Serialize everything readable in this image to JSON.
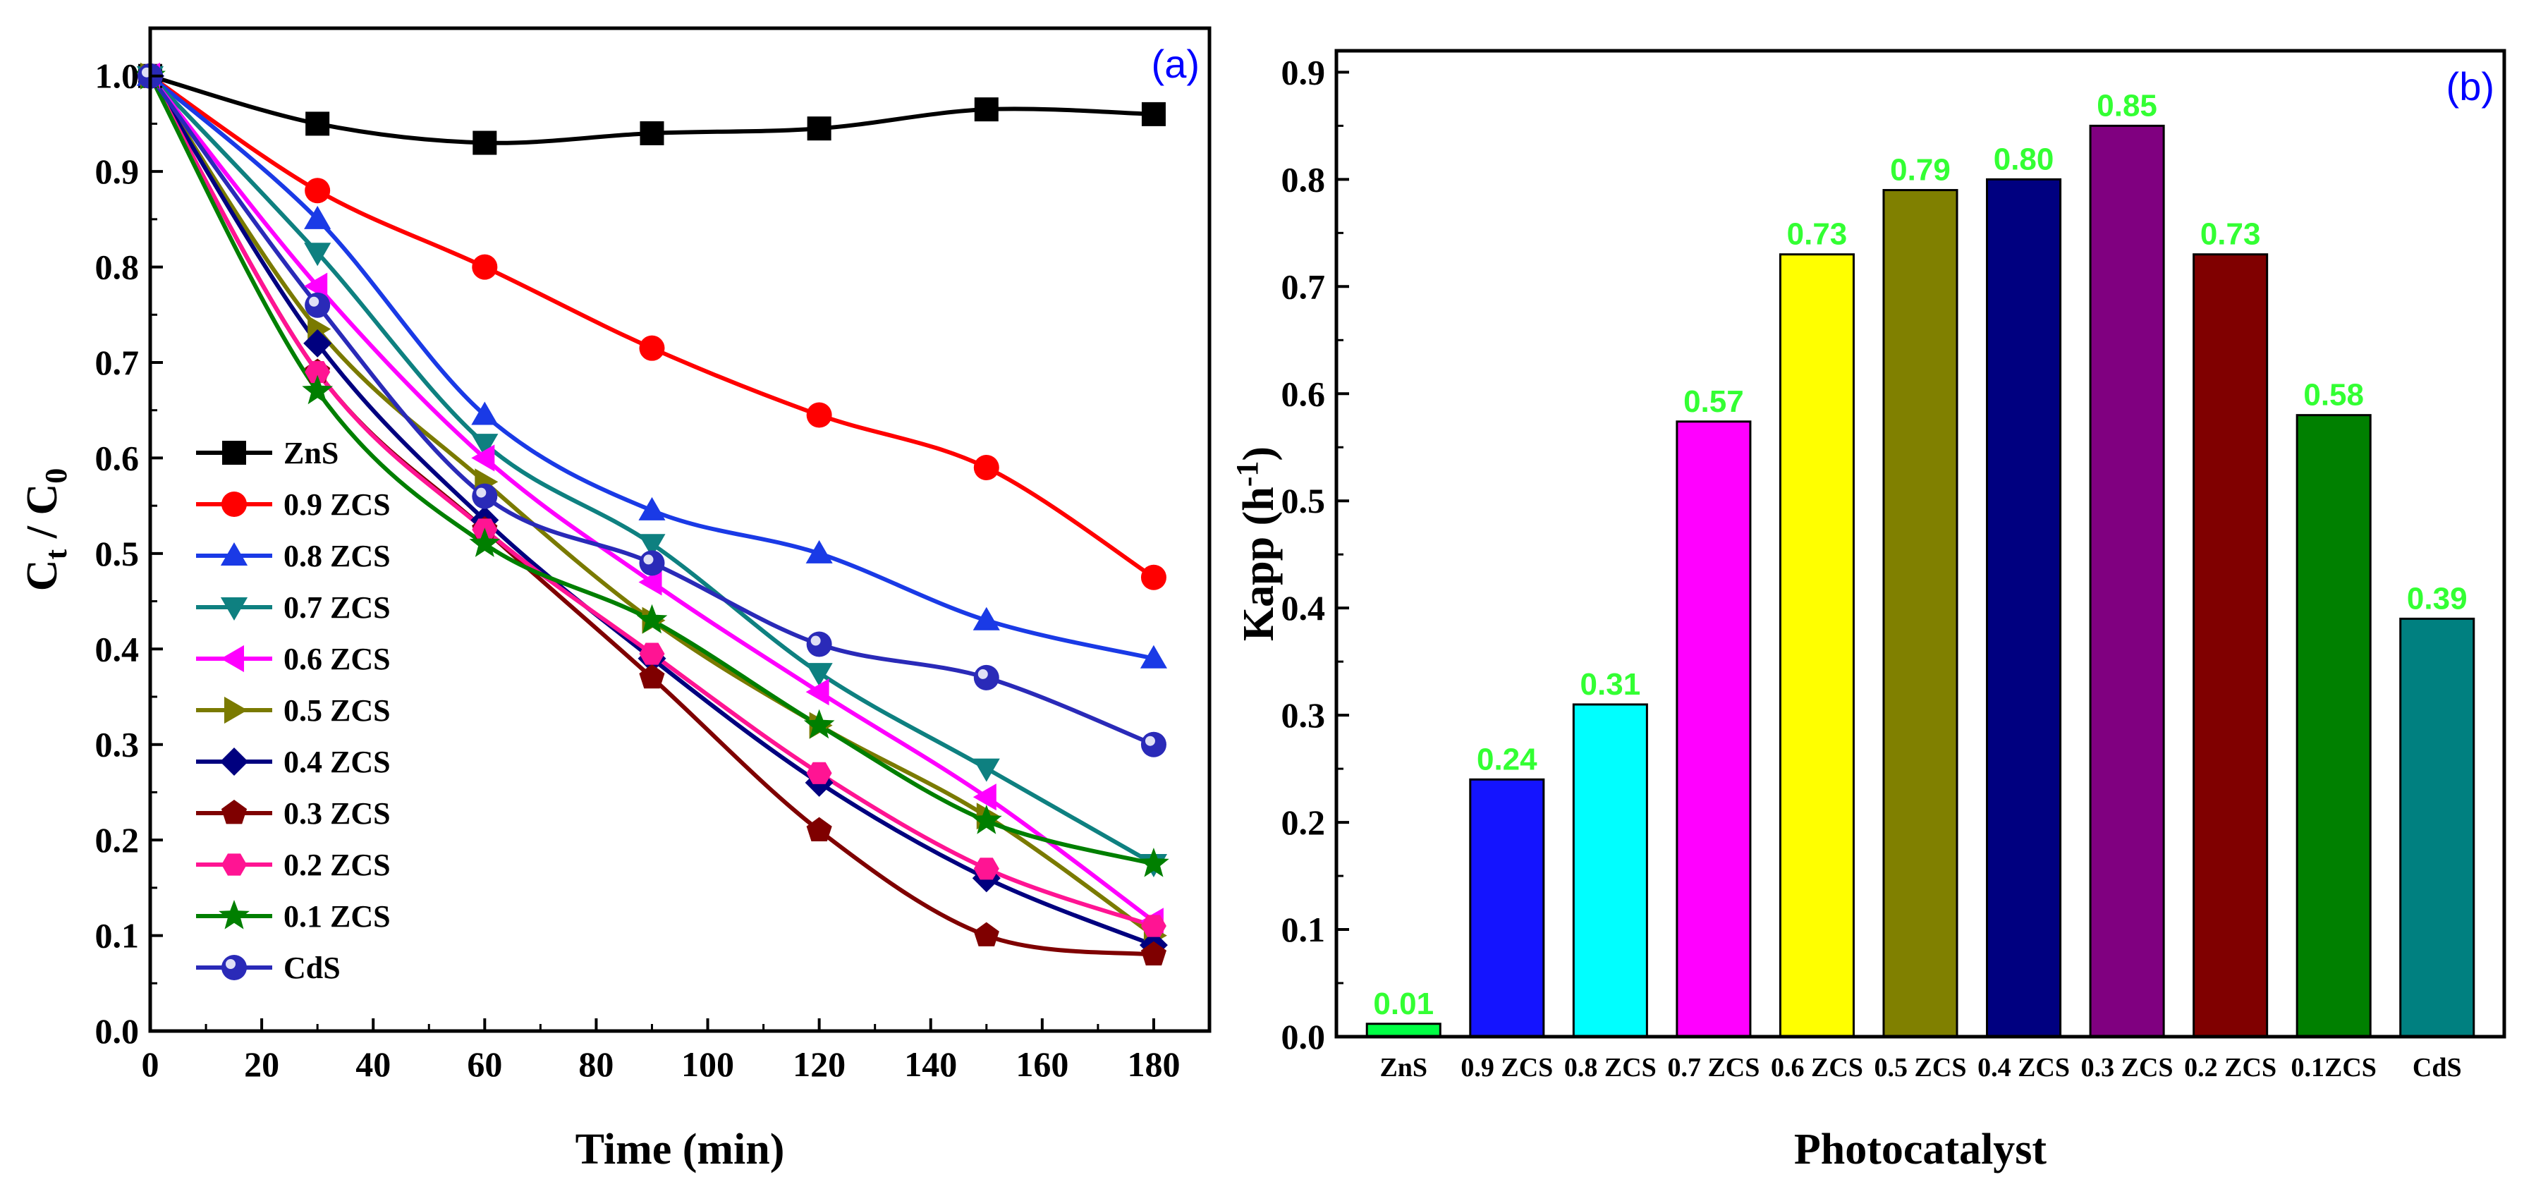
{
  "chart_data": [
    {
      "type": "line",
      "panel_label": "(a)",
      "xlabel": "Time (min)",
      "ylabel": {
        "main": "C",
        "sub1": "t",
        "sep": " / C",
        "sub2": "0"
      },
      "xlim": [
        0,
        190
      ],
      "ylim": [
        0,
        1.05
      ],
      "x": [
        0,
        30,
        60,
        90,
        120,
        150,
        180
      ],
      "x_ticks": [
        0,
        20,
        40,
        60,
        80,
        100,
        120,
        140,
        160,
        180
      ],
      "x_tick_labels": [
        "0",
        "20",
        "40",
        "60",
        "80",
        "100",
        "120",
        "140",
        "160",
        "180"
      ],
      "y_ticks": [
        0,
        0.1,
        0.2,
        0.3,
        0.4,
        0.5,
        0.6,
        0.7,
        0.8,
        0.9,
        1.0
      ],
      "y_tick_labels": [
        "0.0",
        "0.1",
        "0.2",
        "0.3",
        "0.4",
        "0.5",
        "0.6",
        "0.7",
        "0.8",
        "0.9",
        "1.0"
      ],
      "legend_position": "center-left",
      "series": [
        {
          "name": "ZnS",
          "color": "#000000",
          "marker": "square",
          "values": [
            1.0,
            0.95,
            0.93,
            0.94,
            0.945,
            0.965,
            0.96
          ]
        },
        {
          "name": "0.9 ZCS",
          "color": "#ff0000",
          "marker": "circle",
          "values": [
            1.0,
            0.88,
            0.8,
            0.715,
            0.645,
            0.59,
            0.475
          ]
        },
        {
          "name": "0.8 ZCS",
          "color": "#1a3ae6",
          "marker": "triangle-up",
          "values": [
            1.0,
            0.85,
            0.645,
            0.545,
            0.5,
            0.43,
            0.39
          ]
        },
        {
          "name": "0.7 ZCS",
          "color": "#0e8080",
          "marker": "triangle-down",
          "values": [
            1.0,
            0.815,
            0.615,
            0.51,
            0.375,
            0.275,
            0.175
          ]
        },
        {
          "name": "0.6 ZCS",
          "color": "#ff00ff",
          "marker": "triangle-left",
          "values": [
            1.0,
            0.78,
            0.6,
            0.47,
            0.355,
            0.245,
            0.115
          ]
        },
        {
          "name": "0.5 ZCS",
          "color": "#7a7a00",
          "marker": "triangle-right",
          "values": [
            1.0,
            0.735,
            0.575,
            0.43,
            0.32,
            0.225,
            0.1
          ]
        },
        {
          "name": "0.4 ZCS",
          "color": "#00007f",
          "marker": "diamond",
          "values": [
            1.0,
            0.72,
            0.535,
            0.39,
            0.26,
            0.16,
            0.09
          ]
        },
        {
          "name": "0.3 ZCS",
          "color": "#7f0000",
          "marker": "pentagon",
          "values": [
            1.0,
            0.69,
            0.525,
            0.37,
            0.21,
            0.1,
            0.08
          ]
        },
        {
          "name": "0.2 ZCS",
          "color": "#ff1493",
          "marker": "hexagon",
          "values": [
            1.0,
            0.69,
            0.525,
            0.395,
            0.27,
            0.17,
            0.11
          ]
        },
        {
          "name": "0.1 ZCS",
          "color": "#007f00",
          "marker": "star",
          "values": [
            1.0,
            0.67,
            0.51,
            0.43,
            0.32,
            0.22,
            0.175
          ]
        },
        {
          "name": "CdS",
          "color": "#2a2ab8",
          "marker": "sphere",
          "values": [
            1.0,
            0.76,
            0.56,
            0.49,
            0.405,
            0.37,
            0.3
          ]
        }
      ]
    },
    {
      "type": "bar",
      "panel_label": "(b)",
      "xlabel": "Photocatalyst",
      "ylabel": {
        "main": "Kapp (h",
        "sup": "-1",
        "end": ")"
      },
      "ylim": [
        0,
        0.92
      ],
      "y_ticks": [
        0,
        0.1,
        0.2,
        0.3,
        0.4,
        0.5,
        0.6,
        0.7,
        0.8,
        0.9
      ],
      "y_tick_labels": [
        "0.0",
        "0.1",
        "0.2",
        "0.3",
        "0.4",
        "0.5",
        "0.6",
        "0.7",
        "0.8",
        "0.9"
      ],
      "categories": [
        "ZnS",
        "0.9 ZCS",
        "0.8 ZCS",
        "0.7 ZCS",
        "0.6 ZCS",
        "0.5 ZCS",
        "0.4 ZCS",
        "0.3 ZCS",
        "0.2 ZCS",
        "0.1ZCS",
        "CdS"
      ],
      "values": [
        0.012,
        0.24,
        0.31,
        0.574,
        0.73,
        0.79,
        0.8,
        0.85,
        0.73,
        0.58,
        0.39
      ],
      "value_labels": [
        "0.01",
        "0.24",
        "0.31",
        "0.57",
        "0.73",
        "0.79",
        "0.80",
        "0.85",
        "0.73",
        "0.58",
        "0.39"
      ],
      "bar_colors": [
        "#00ff44",
        "#1414ff",
        "#00ffff",
        "#ff00ff",
        "#ffff00",
        "#808000",
        "#000080",
        "#800080",
        "#800000",
        "#008000",
        "#008080"
      ],
      "value_label_color": "#33ff33"
    }
  ],
  "colors": {
    "panel_label": "#0000ff",
    "axis": "#000000"
  }
}
